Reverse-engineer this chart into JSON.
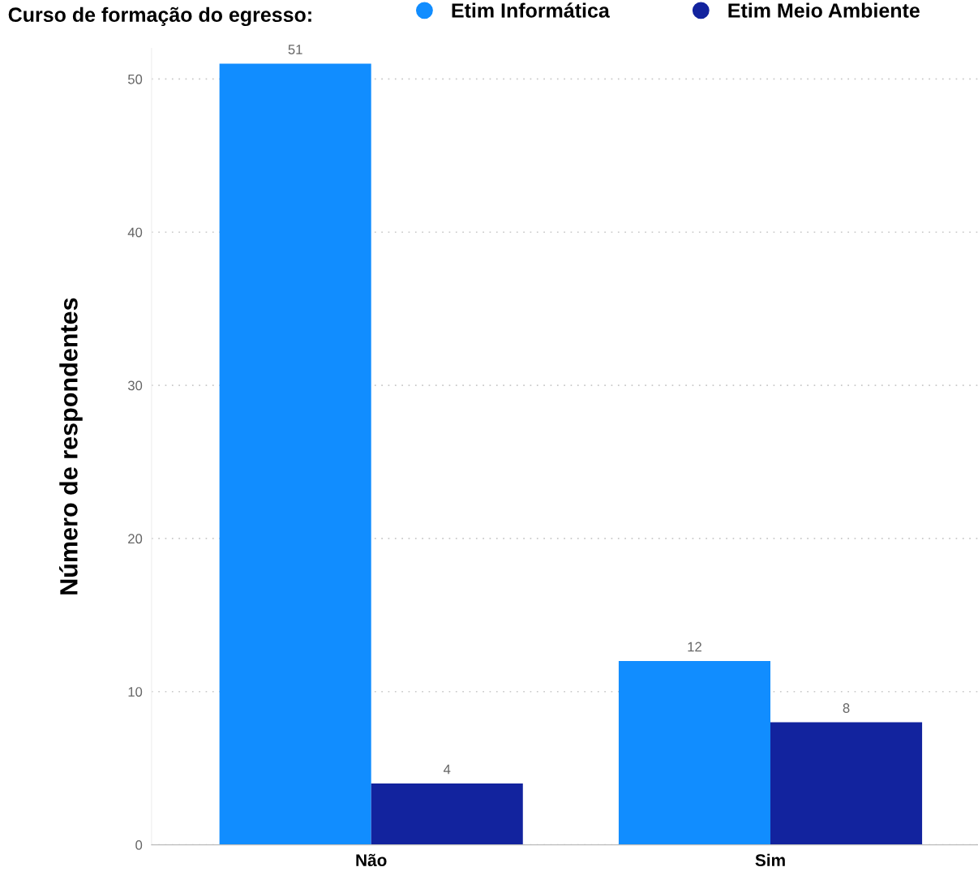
{
  "chart_data": {
    "type": "bar",
    "legend_title": "Curso de formação do egresso:",
    "ylabel": "Número de respondentes",
    "categories": [
      "Não",
      "Sim"
    ],
    "series": [
      {
        "name": "Etim Informática",
        "color": "#118dff",
        "values": [
          51,
          12
        ]
      },
      {
        "name": "Etim Meio Ambiente",
        "color": "#12239e",
        "values": [
          4,
          8
        ]
      }
    ],
    "ylim": [
      0,
      52
    ],
    "yticks": [
      0,
      10,
      20,
      30,
      40,
      50
    ],
    "grid": "y",
    "legend": "top",
    "data_labels": true
  }
}
